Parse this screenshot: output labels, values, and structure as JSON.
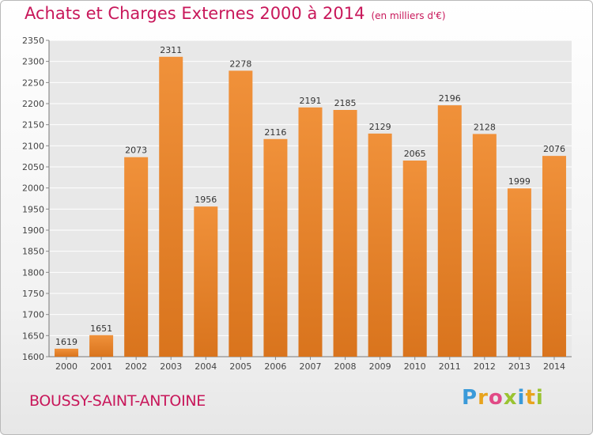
{
  "title": "Achats et Charges Externes 2000 à 2014",
  "unit": "(en milliers d'€)",
  "commune": "BOUSSY-SAINT-ANTOINE",
  "logo": [
    "P",
    "r",
    "o",
    "x",
    "i",
    "t",
    "i"
  ],
  "colors": {
    "bar": "#f0913a",
    "bar_dark": "#d9741d",
    "title": "#c8175a",
    "plot_background": "#e8e8e8",
    "gridline": "#ffffff"
  },
  "chart_data": {
    "type": "bar",
    "categories": [
      "2000",
      "2001",
      "2002",
      "2003",
      "2004",
      "2005",
      "2006",
      "2007",
      "2008",
      "2009",
      "2010",
      "2011",
      "2012",
      "2013",
      "2014"
    ],
    "values": [
      1619,
      1651,
      2073,
      2311,
      1956,
      2278,
      2116,
      2191,
      2185,
      2129,
      2065,
      2196,
      2128,
      1999,
      2076
    ],
    "ylim": [
      1600,
      2350
    ],
    "yticks": [
      1600,
      1650,
      1700,
      1750,
      1800,
      1850,
      1900,
      1950,
      2000,
      2050,
      2100,
      2150,
      2200,
      2250,
      2300,
      2350
    ],
    "grid": true,
    "data_labels": true
  }
}
